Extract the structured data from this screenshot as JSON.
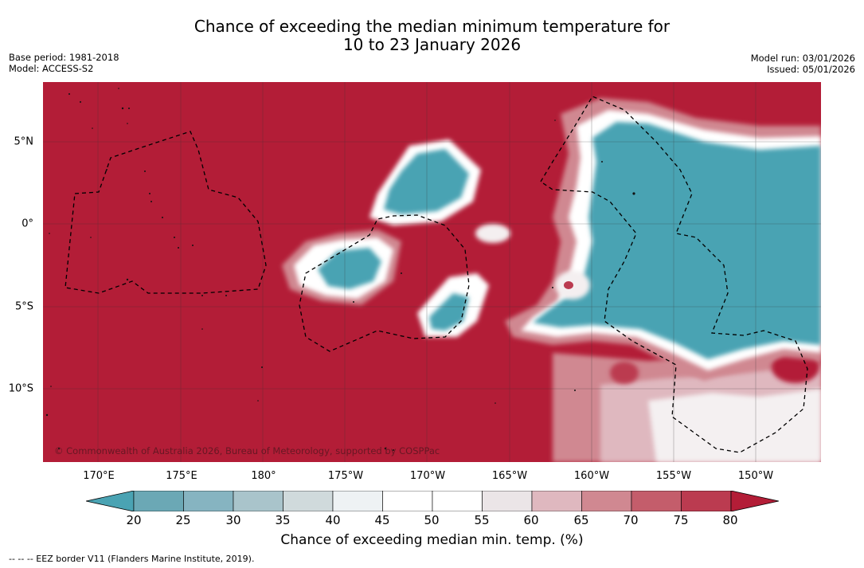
{
  "title_line1": "Chance of exceeding the median minimum temperature for",
  "title_line2": "10 to 23 January 2026",
  "base_period": "Base period: 1981-2018",
  "model": "Model: ACCESS-S2",
  "model_run": "Model run: 03/01/2026",
  "issued": "Issued: 05/01/2026",
  "copyright": "© Commonwealth of Australia 2026, Bureau of Meteorology, supported by COSPPac",
  "lon_labels": [
    "170°E",
    "175°E",
    "180°",
    "175°W",
    "170°W",
    "165°W",
    "160°W",
    "155°W",
    "150°W"
  ],
  "lat_labels": [
    "5°N",
    "0°",
    "5°S",
    "10°S"
  ],
  "colorbar": {
    "ticks": [
      "20",
      "25",
      "30",
      "35",
      "40",
      "45",
      "50",
      "55",
      "60",
      "65",
      "70",
      "75",
      "80"
    ],
    "colors": [
      "#4aa3b3",
      "#6ba8b5",
      "#86b4c1",
      "#a9c4cb",
      "#d0dadc",
      "#eef2f4",
      "#ffffff",
      "#ffffff",
      "#ebe5e7",
      "#dfb8bf",
      "#d08891",
      "#c45d6b",
      "#bb3b50",
      "#b31d37"
    ],
    "label": "Chance of exceeding median min. temp. (%)"
  },
  "legend_text": "--  --  -- EEZ border V11 (Flanders Marine Institute, 2019)."
}
